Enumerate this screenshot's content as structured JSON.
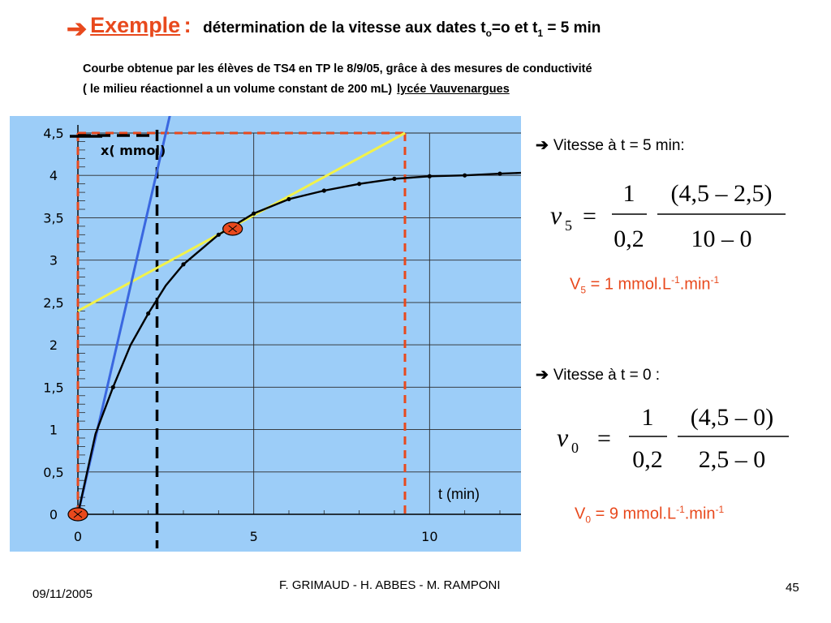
{
  "slide": {
    "title": {
      "arrow": "➔",
      "keyword": "Exemple",
      "colon": ":",
      "text_before_sub_o": "détermination de la vitesse aux dates t",
      "sub_o": "o",
      "text_between": "=o et t",
      "sub_1": "1",
      "text_after": " = 5 min"
    },
    "subtitle_line1": "Courbe obtenue par les élèves de TS4 en TP le 8/9/05, grâce à des mesures de conductivité",
    "subtitle_line2": "( le milieu réactionnel a un volume constant de 200 mL)",
    "subtitle_link": "lycée Vauvenargues"
  },
  "panel_5": {
    "arrow": "➔",
    "label": "Vitesse à t = 5 min:",
    "formula": {
      "lhs": "v",
      "lhs_sub": "5",
      "equals": "=",
      "num1": "1",
      "den1": "0,2",
      "num2": "(4,5 – 2,5)",
      "den2": "10 – 0"
    },
    "result": {
      "prefix": "V",
      "sub": "5",
      "mid": " = 1 mmol.L",
      "sup1": "-1",
      "dot": ".min",
      "sup2": "-1"
    }
  },
  "panel_0": {
    "arrow": "➔",
    "label": "Vitesse à t = 0 :",
    "formula": {
      "lhs": "v",
      "lhs_sub": "0",
      "equals": "=",
      "num1": "1",
      "den1": "0,2",
      "num2": "(4,5 – 0)",
      "den2": "2,5 – 0"
    },
    "result": {
      "prefix": "V",
      "sub": "0",
      "mid": " = 9 mmol.L",
      "sup1": "-1",
      "dot": ".min",
      "sup2": "-1"
    }
  },
  "footer": {
    "date": "09/11/2005",
    "authors": "F. GRIMAUD - H. ABBES - M. RAMPONI",
    "page": "45"
  },
  "chart_data": {
    "type": "line",
    "ylabel": "x( mmol)",
    "xlabel": "t (min)",
    "xlim": [
      0,
      12.6
    ],
    "ylim": [
      0,
      4.5
    ],
    "x_ticks": [
      {
        "v": 0,
        "label": "0"
      },
      {
        "v": 5,
        "label": "5"
      },
      {
        "v": 10,
        "label": "10"
      }
    ],
    "y_ticks": [
      {
        "v": 0,
        "label": "0"
      },
      {
        "v": 0.5,
        "label": "0,5"
      },
      {
        "v": 1,
        "label": "1"
      },
      {
        "v": 1.5,
        "label": "1,5"
      },
      {
        "v": 2,
        "label": "2"
      },
      {
        "v": 2.5,
        "label": "2,5"
      },
      {
        "v": 3,
        "label": "3"
      },
      {
        "v": 3.5,
        "label": "3,5"
      },
      {
        "v": 4,
        "label": "4"
      },
      {
        "v": 4.5,
        "label": "4,5"
      }
    ],
    "curve": {
      "x": [
        0,
        0.5,
        1,
        1.5,
        2,
        2.5,
        3,
        4,
        5,
        6,
        7,
        8,
        9,
        10,
        11,
        12,
        12.6
      ],
      "y": [
        0,
        0.95,
        1.5,
        2.0,
        2.37,
        2.7,
        2.95,
        3.3,
        3.55,
        3.72,
        3.82,
        3.9,
        3.96,
        3.99,
        4.0,
        4.02,
        4.03
      ]
    },
    "markers": {
      "x": [
        1,
        2,
        3,
        4,
        5,
        6,
        7,
        8,
        9,
        10,
        11,
        12
      ],
      "y": [
        1.5,
        2.37,
        2.95,
        3.3,
        3.55,
        3.72,
        3.82,
        3.9,
        3.96,
        3.99,
        4.0,
        4.02
      ]
    },
    "tangent_t5": {
      "x": [
        0,
        9.3
      ],
      "y": [
        2.4,
        4.5
      ]
    },
    "tangent_t0": {
      "x": [
        0,
        2.5
      ],
      "y": [
        0,
        4.5
      ]
    },
    "points_of_tangency": [
      {
        "x": 0,
        "y": 0
      },
      {
        "x": 4.4,
        "y": 3.37
      }
    ],
    "guide_lines": {
      "red_dashed_x": [
        0,
        9.3
      ],
      "red_dashed_y": [
        4.5
      ],
      "black_dashed_x": [
        2.25
      ],
      "black_dashed_y": [
        4.5
      ]
    },
    "colors": {
      "background": "#9ccdf8",
      "grid": "#2a2a2a",
      "curve": "#000000",
      "tangent_t5": "#f2f24a",
      "tangent_t0": "#3a67e0",
      "red_dash": "#e8491d",
      "black_dash": "#000000",
      "marker_fill": "#e8491d"
    }
  }
}
